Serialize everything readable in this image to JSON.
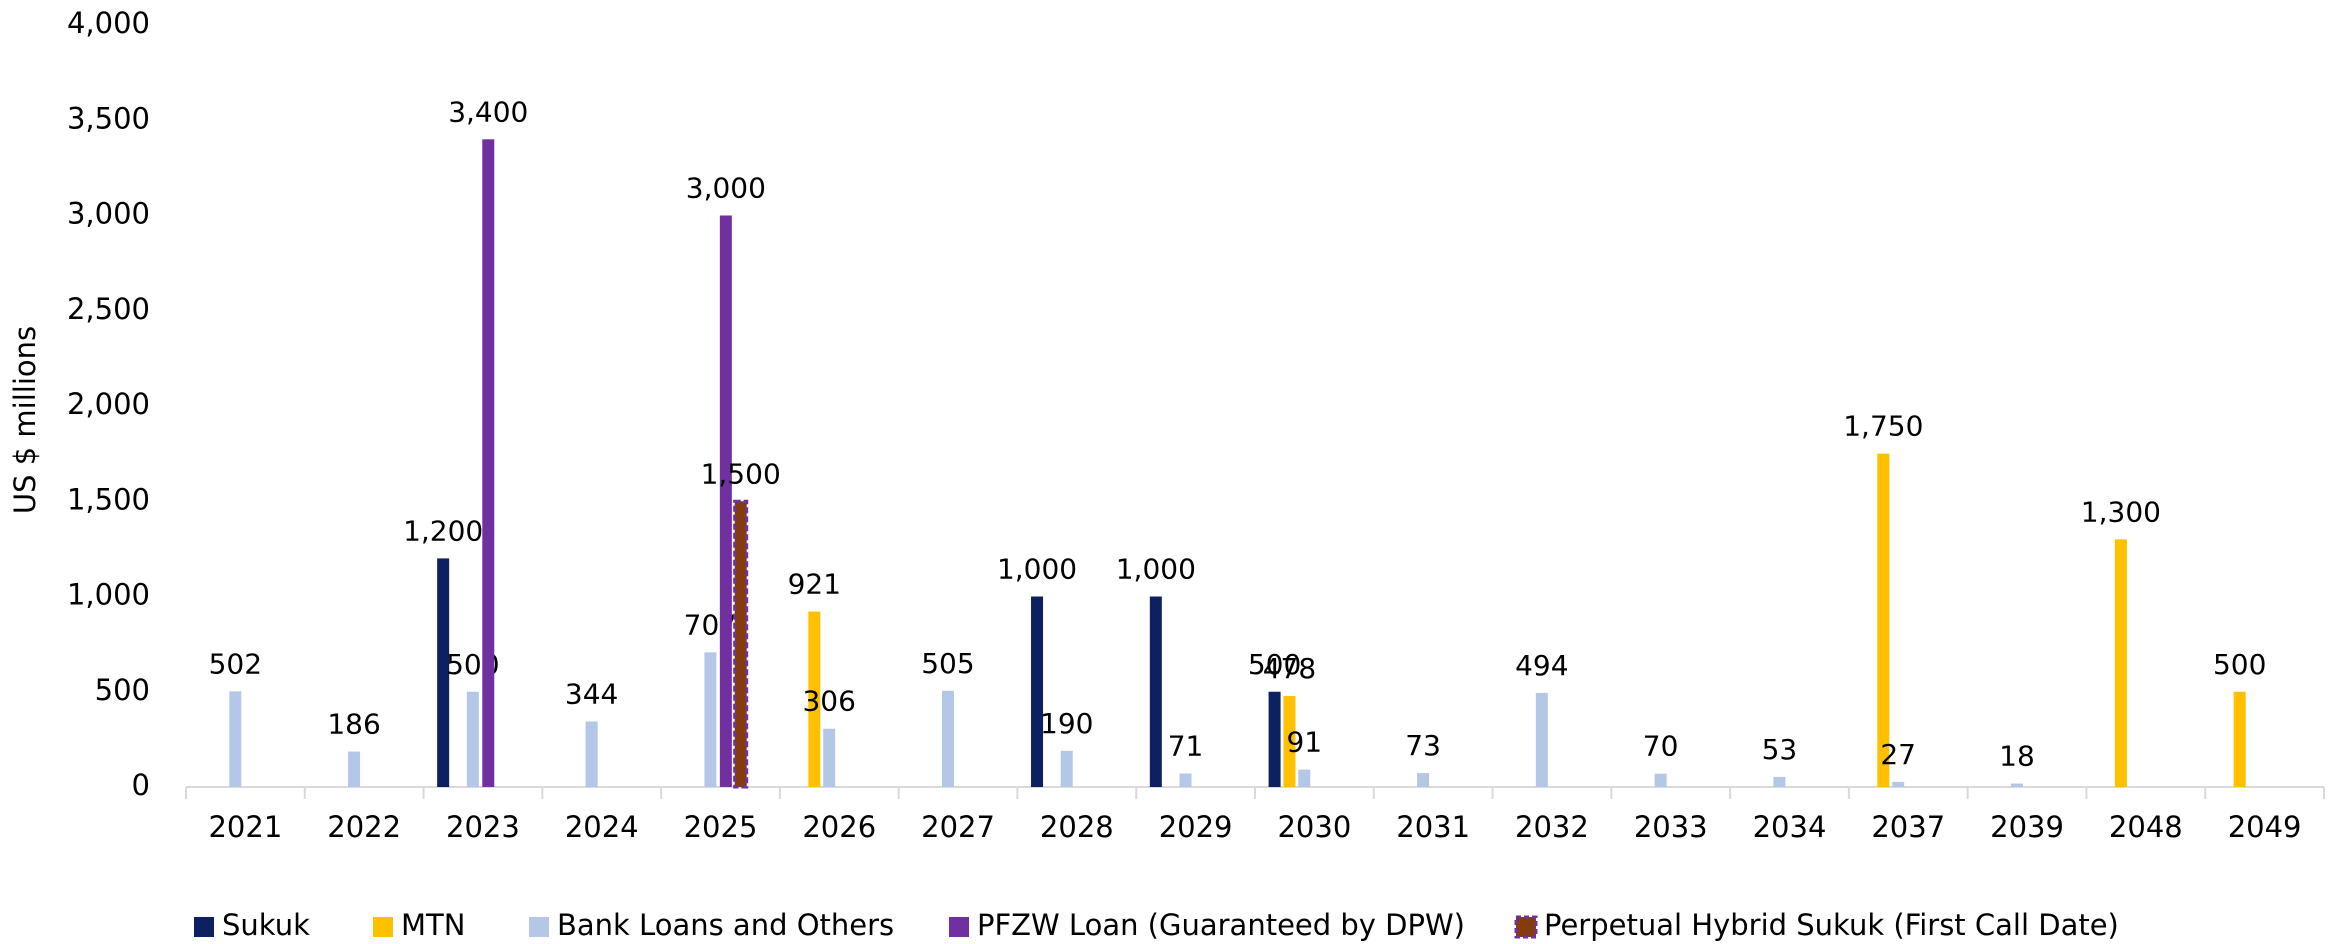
{
  "chart_data": {
    "type": "bar",
    "y_label": "US $ millions",
    "categories": [
      "2021",
      "2022",
      "2023",
      "2024",
      "2025",
      "2026",
      "2027",
      "2028",
      "2029",
      "2030",
      "2031",
      "2032",
      "2033",
      "2034",
      "2037",
      "2039",
      "2048",
      "2049"
    ],
    "series": [
      {
        "name": "Sukuk",
        "color": "#0d2060",
        "values": [
          null,
          null,
          1200,
          null,
          null,
          null,
          null,
          1000,
          1000,
          500,
          null,
          null,
          null,
          null,
          null,
          null,
          null,
          null
        ],
        "value_labels": [
          null,
          null,
          "1,200",
          null,
          null,
          null,
          null,
          "1,000",
          "1,000",
          "500",
          null,
          null,
          null,
          null,
          null,
          null,
          null,
          null
        ]
      },
      {
        "name": "MTN",
        "color": "#ffc000",
        "values": [
          null,
          null,
          null,
          null,
          null,
          921,
          null,
          null,
          null,
          478,
          null,
          null,
          null,
          null,
          1750,
          null,
          1300,
          500
        ],
        "value_labels": [
          null,
          null,
          null,
          null,
          null,
          "921",
          null,
          null,
          null,
          "478",
          null,
          null,
          null,
          null,
          "1,750",
          null,
          "1,300",
          "500"
        ]
      },
      {
        "name": "Bank Loans and Others",
        "color": "#b4c7e7",
        "values": [
          502,
          186,
          500,
          344,
          707,
          306,
          505,
          190,
          71,
          91,
          73,
          494,
          70,
          53,
          27,
          18,
          null,
          null
        ],
        "value_labels": [
          "502",
          "186",
          "500",
          "344",
          "707",
          "306",
          "505",
          "190",
          "71",
          "91",
          "73",
          "494",
          "70",
          "53",
          "27",
          "18",
          null,
          null
        ]
      },
      {
        "name": "PFZW Loan (Guaranteed by DPW)",
        "color": "#7030a0",
        "values": [
          null,
          null,
          3400,
          null,
          3000,
          null,
          null,
          null,
          null,
          null,
          null,
          null,
          null,
          null,
          null,
          null,
          null,
          null
        ],
        "value_labels": [
          null,
          null,
          "3,400",
          null,
          "3,000",
          null,
          null,
          null,
          null,
          null,
          null,
          null,
          null,
          null,
          null,
          null,
          null,
          null
        ]
      },
      {
        "name": "Perpetual Hybrid Sukuk (First Call Date)",
        "color": "#843c0c",
        "border_color": "#7030a0",
        "border_dashed": true,
        "values": [
          null,
          null,
          null,
          null,
          1500,
          null,
          null,
          null,
          null,
          null,
          null,
          null,
          null,
          null,
          null,
          null,
          null,
          null
        ],
        "value_labels": [
          null,
          null,
          null,
          null,
          "1,500",
          null,
          null,
          null,
          null,
          null,
          null,
          null,
          null,
          null,
          null,
          null,
          null,
          null
        ]
      }
    ],
    "ylim": [
      0,
      4000
    ],
    "yticks": [
      0,
      500,
      {
        "value": 1000,
        "label": "1,000"
      },
      {
        "value": 1500,
        "label": "1,500"
      },
      {
        "value": 2000,
        "label": "2,000"
      },
      {
        "value": 2500,
        "label": "2,500"
      },
      {
        "value": 3000,
        "label": "3,000"
      },
      {
        "value": 3500,
        "label": "3,500"
      },
      {
        "value": 4000,
        "label": "4,000"
      }
    ],
    "grid": false,
    "legend": "bottom"
  }
}
